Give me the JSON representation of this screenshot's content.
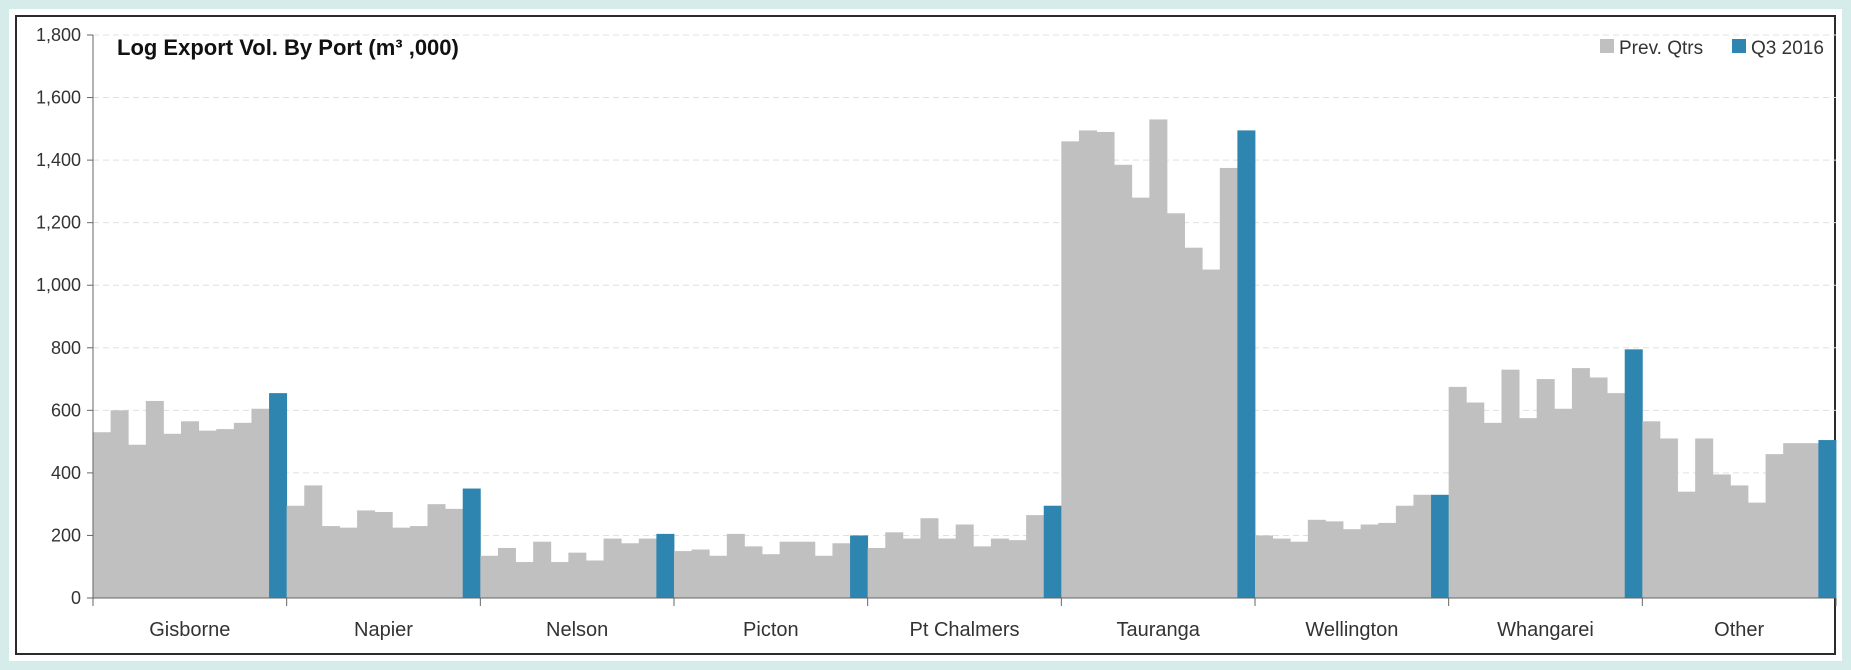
{
  "chart_data": {
    "type": "bar",
    "title": "Log Export Vol. By Port (m³ ,000)",
    "xlabel": "",
    "ylabel": "",
    "ylim": [
      0,
      1800
    ],
    "yticks": [
      0,
      200,
      400,
      600,
      800,
      1000,
      1200,
      1400,
      1600,
      1800
    ],
    "ytick_labels": [
      "0",
      "200",
      "400",
      "600",
      "800",
      "1,000",
      "1,200",
      "1,400",
      "1,600",
      "1,800"
    ],
    "grid": true,
    "legend_position": "top-right",
    "categories": [
      "Gisborne",
      "Napier",
      "Nelson",
      "Picton",
      "Pt Chalmers",
      "Tauranga",
      "Wellington",
      "Whangarei",
      "Other"
    ],
    "series": [
      {
        "name": "Prev. Qtrs",
        "color": "#c0c0c0",
        "values": [
          [
            530,
            600,
            490,
            630,
            525,
            565,
            535,
            540,
            560,
            605
          ],
          [
            295,
            360,
            230,
            225,
            280,
            275,
            225,
            230,
            300,
            285
          ],
          [
            135,
            160,
            115,
            180,
            115,
            145,
            120,
            190,
            175,
            190
          ],
          [
            150,
            155,
            135,
            205,
            165,
            140,
            180,
            180,
            135,
            175
          ],
          [
            160,
            210,
            190,
            255,
            190,
            235,
            165,
            190,
            185,
            265
          ],
          [
            1460,
            1495,
            1490,
            1385,
            1280,
            1530,
            1230,
            1120,
            1050,
            1375
          ],
          [
            200,
            190,
            180,
            250,
            245,
            220,
            235,
            240,
            295,
            330
          ],
          [
            675,
            625,
            560,
            730,
            575,
            700,
            605,
            735,
            705,
            655
          ],
          [
            565,
            510,
            340,
            510,
            395,
            360,
            305,
            460,
            495,
            495
          ]
        ]
      },
      {
        "name": "Q3 2016",
        "color": "#2e86b0",
        "values": [
          655,
          350,
          205,
          200,
          295,
          1495,
          330,
          795,
          505
        ]
      }
    ]
  }
}
